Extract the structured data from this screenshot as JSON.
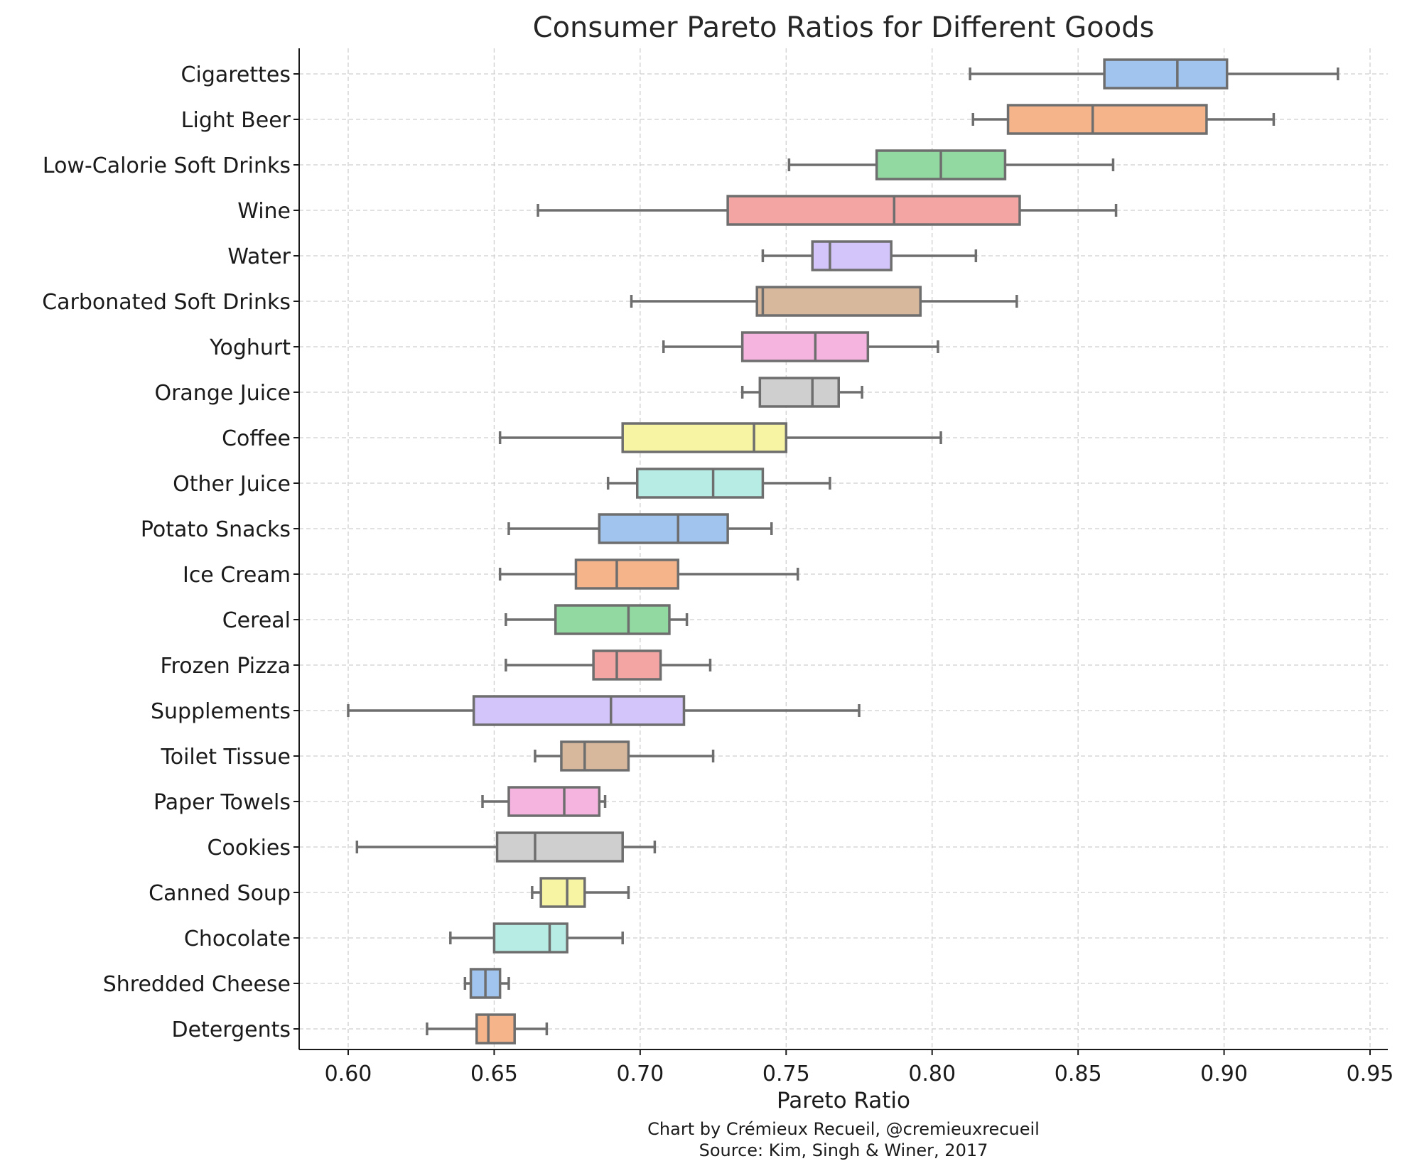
{
  "chart_data": {
    "type": "box",
    "orientation": "horizontal",
    "title": "Consumer Pareto Ratios for Different Goods",
    "xlabel": "Pareto Ratio",
    "ylabel": "",
    "xlim": [
      0.583,
      0.955
    ],
    "xticks": [
      "0.60",
      "0.65",
      "0.70",
      "0.75",
      "0.80",
      "0.85",
      "0.90",
      "0.95"
    ],
    "xtick_values": [
      0.6,
      0.65,
      0.7,
      0.75,
      0.8,
      0.85,
      0.9,
      0.95
    ],
    "grid": true,
    "credit_line1": "Chart by Crémieux Recueil, @cremieuxrecueil",
    "credit_line2": "Source: Kim, Singh & Winer, 2017",
    "palette": [
      "#a1c4ee",
      "#f6b48a",
      "#91d9a0",
      "#f2a5a3",
      "#d3c4fa",
      "#d7b89c",
      "#f5b4e0",
      "#cfcfcf",
      "#f7f4a4",
      "#b7ece5"
    ],
    "categories": [
      {
        "name": "Cigarettes",
        "min": 0.813,
        "q1": 0.859,
        "median": 0.884,
        "q3": 0.901,
        "max": 0.939
      },
      {
        "name": "Light Beer",
        "min": 0.814,
        "q1": 0.826,
        "median": 0.855,
        "q3": 0.894,
        "max": 0.917
      },
      {
        "name": "Low-Calorie Soft Drinks",
        "min": 0.751,
        "q1": 0.781,
        "median": 0.803,
        "q3": 0.825,
        "max": 0.862
      },
      {
        "name": "Wine",
        "min": 0.665,
        "q1": 0.73,
        "median": 0.787,
        "q3": 0.83,
        "max": 0.863
      },
      {
        "name": "Water",
        "min": 0.742,
        "q1": 0.759,
        "median": 0.765,
        "q3": 0.786,
        "max": 0.815
      },
      {
        "name": "Carbonated Soft Drinks",
        "min": 0.697,
        "q1": 0.74,
        "median": 0.742,
        "q3": 0.796,
        "max": 0.829
      },
      {
        "name": "Yoghurt",
        "min": 0.708,
        "q1": 0.735,
        "median": 0.76,
        "q3": 0.778,
        "max": 0.802
      },
      {
        "name": "Orange Juice",
        "min": 0.735,
        "q1": 0.741,
        "median": 0.759,
        "q3": 0.768,
        "max": 0.776
      },
      {
        "name": "Coffee",
        "min": 0.652,
        "q1": 0.694,
        "median": 0.739,
        "q3": 0.75,
        "max": 0.803
      },
      {
        "name": "Other Juice",
        "min": 0.689,
        "q1": 0.699,
        "median": 0.725,
        "q3": 0.742,
        "max": 0.765
      },
      {
        "name": "Potato Snacks",
        "min": 0.655,
        "q1": 0.686,
        "median": 0.713,
        "q3": 0.73,
        "max": 0.745
      },
      {
        "name": "Ice Cream",
        "min": 0.652,
        "q1": 0.678,
        "median": 0.692,
        "q3": 0.713,
        "max": 0.754
      },
      {
        "name": "Cereal",
        "min": 0.654,
        "q1": 0.671,
        "median": 0.696,
        "q3": 0.71,
        "max": 0.716
      },
      {
        "name": "Frozen Pizza",
        "min": 0.654,
        "q1": 0.684,
        "median": 0.692,
        "q3": 0.707,
        "max": 0.724
      },
      {
        "name": "Supplements",
        "min": 0.6,
        "q1": 0.643,
        "median": 0.69,
        "q3": 0.715,
        "max": 0.775
      },
      {
        "name": "Toilet Tissue",
        "min": 0.664,
        "q1": 0.673,
        "median": 0.681,
        "q3": 0.696,
        "max": 0.725
      },
      {
        "name": "Paper Towels",
        "min": 0.646,
        "q1": 0.655,
        "median": 0.674,
        "q3": 0.686,
        "max": 0.688
      },
      {
        "name": "Cookies",
        "min": 0.603,
        "q1": 0.651,
        "median": 0.664,
        "q3": 0.694,
        "max": 0.705
      },
      {
        "name": "Canned Soup",
        "min": 0.663,
        "q1": 0.666,
        "median": 0.675,
        "q3": 0.681,
        "max": 0.696
      },
      {
        "name": "Chocolate",
        "min": 0.635,
        "q1": 0.65,
        "median": 0.669,
        "q3": 0.675,
        "max": 0.694
      },
      {
        "name": "Shredded Cheese",
        "min": 0.64,
        "q1": 0.642,
        "median": 0.647,
        "q3": 0.652,
        "max": 0.655
      },
      {
        "name": "Detergents",
        "min": 0.627,
        "q1": 0.644,
        "median": 0.648,
        "q3": 0.657,
        "max": 0.668
      }
    ]
  }
}
